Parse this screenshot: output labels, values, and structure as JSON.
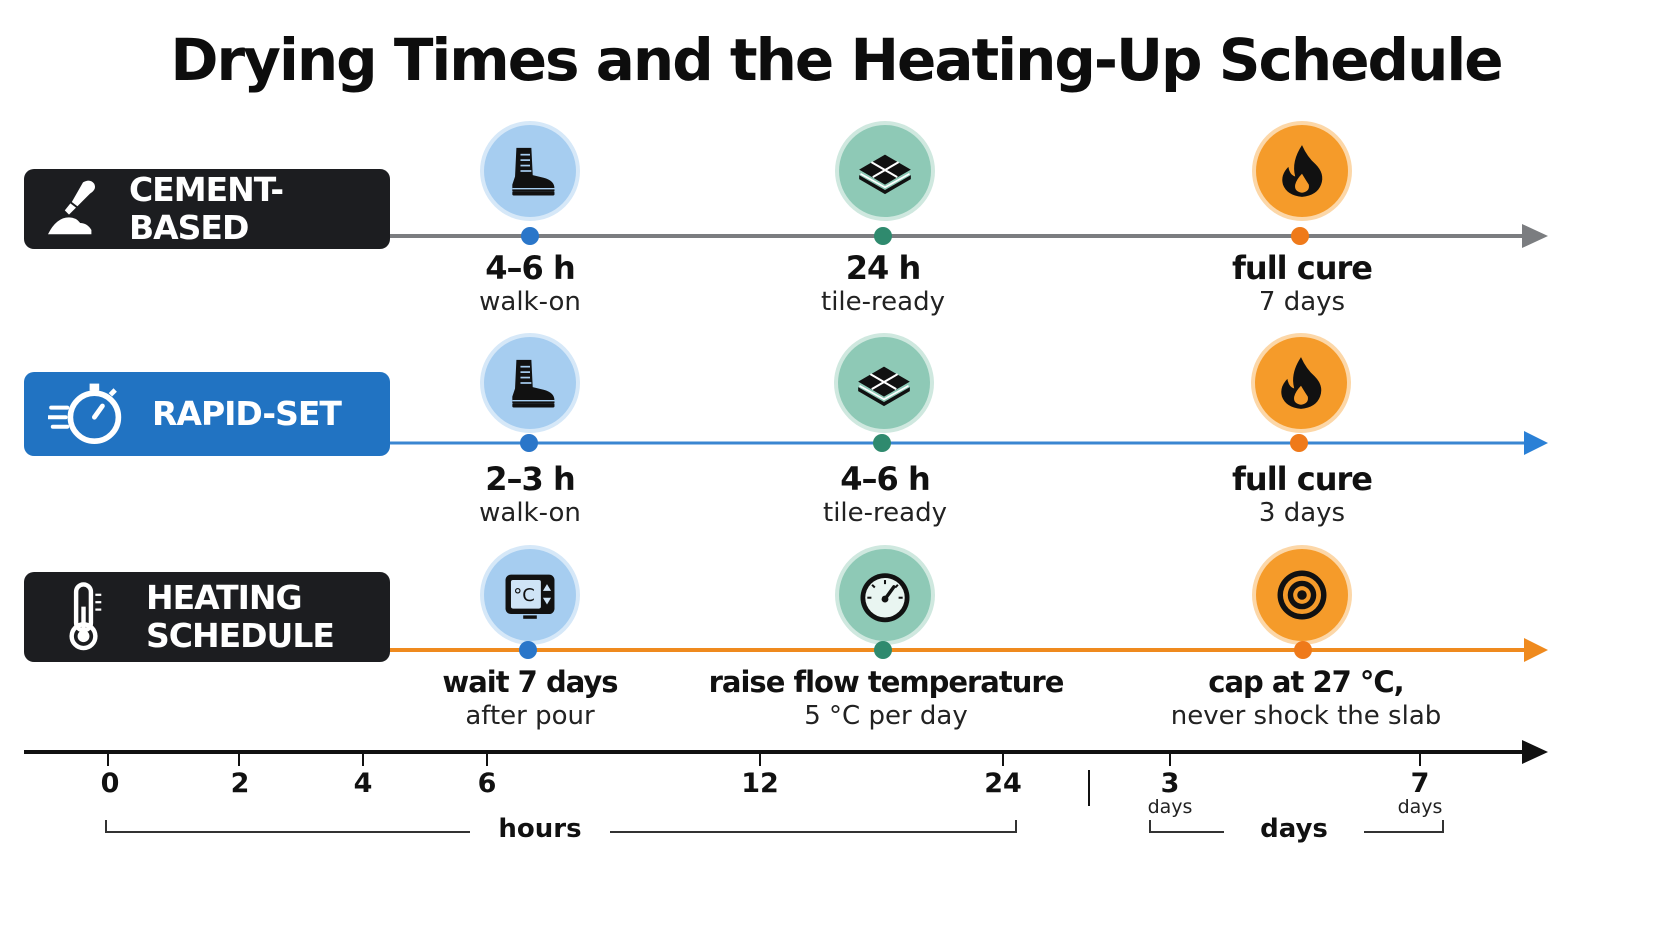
{
  "title": "Drying Times and the Heating-Up Schedule",
  "colors": {
    "dark": "#1c1d20",
    "blue": "#2173c2",
    "orange": "#ef8a1e",
    "gray_line": "#7b7d80",
    "walk_circle": "#a6cdf0",
    "tile_circle": "#8ec9b6",
    "fire_circle": "#f59b2a",
    "dot_blue": "#2a76c9",
    "dot_green": "#2f8a6e",
    "dot_orange": "#ef7a1a"
  },
  "rows": [
    {
      "label": "CEMENT-BASED",
      "label_icon": "trowel-icon",
      "events": [
        {
          "icon": "boot-icon",
          "main": "4–6 h",
          "sub": "walk-on"
        },
        {
          "icon": "tiles-icon",
          "main": "24 h",
          "sub": "tile-ready"
        },
        {
          "icon": "fire-icon",
          "main": "full cure",
          "sub": "7 days"
        }
      ]
    },
    {
      "label": "RAPID-SET",
      "label_icon": "stopwatch-icon",
      "events": [
        {
          "icon": "boot-icon",
          "main": "2–3 h",
          "sub": "walk-on"
        },
        {
          "icon": "tiles-icon",
          "main": "4–6 h",
          "sub": "tile-ready"
        },
        {
          "icon": "fire-icon",
          "main": "full cure",
          "sub": "3 days"
        }
      ]
    },
    {
      "label": "HEATING\nSCHEDULE",
      "label_icon": "thermometer-icon",
      "events": [
        {
          "icon": "thermostat-icon",
          "main": "wait 7 days",
          "sub": "after pour",
          "icon_text": "°C"
        },
        {
          "icon": "gauge-icon",
          "main": "raise flow temperature",
          "sub": "5 °C per day"
        },
        {
          "icon": "target-icon",
          "main": "cap at  27 °C,",
          "sub": "never shock the slab"
        }
      ]
    }
  ],
  "axis": {
    "hour_ticks": [
      "0",
      "2",
      "4",
      "6",
      "12",
      "24"
    ],
    "day_ticks": [
      "3",
      "7"
    ],
    "day_unit": "days",
    "hours_label": "hours",
    "days_label": "days"
  }
}
